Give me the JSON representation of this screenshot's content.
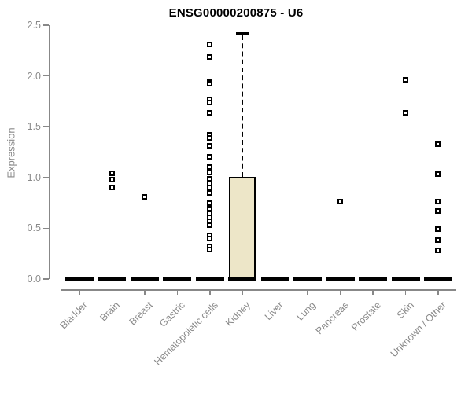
{
  "chart_data": {
    "type": "box",
    "title": "ENSG00000200875 - U6",
    "xlabel": "",
    "ylabel": "Expression",
    "ylim": [
      0,
      2.5
    ],
    "yticks": [
      0,
      0.5,
      1,
      1.5,
      2,
      2.5
    ],
    "grid": false,
    "legend": "none",
    "marker": "open-square",
    "categories": [
      "Bladder",
      "Brain",
      "Breast",
      "Gastric",
      "Hematopoietic cells",
      "Kidney",
      "Liver",
      "Lung",
      "Pancreas",
      "Prostate",
      "Skin",
      "Unknown / Other"
    ],
    "boxes": [
      {
        "category": "Bladder",
        "median": 0,
        "q1": 0,
        "q3": 0,
        "whisker_low": 0,
        "whisker_high": 0,
        "outliers": []
      },
      {
        "category": "Brain",
        "median": 0,
        "q1": 0,
        "q3": 0,
        "whisker_low": 0,
        "whisker_high": 0,
        "outliers": [
          1.04,
          0.98,
          0.9
        ]
      },
      {
        "category": "Breast",
        "median": 0,
        "q1": 0,
        "q3": 0,
        "whisker_low": 0,
        "whisker_high": 0,
        "outliers": [
          0.81
        ]
      },
      {
        "category": "Gastric",
        "median": 0,
        "q1": 0,
        "q3": 0,
        "whisker_low": 0,
        "whisker_high": 0,
        "outliers": []
      },
      {
        "category": "Hematopoietic cells",
        "median": 0,
        "q1": 0,
        "q3": 0,
        "whisker_low": 0,
        "whisker_high": 0,
        "outliers": [
          2.31,
          2.19,
          1.94,
          1.92,
          1.77,
          1.74,
          1.64,
          1.42,
          1.39,
          1.31,
          1.2,
          1.1,
          1.05,
          0.99,
          0.94,
          0.9,
          0.85,
          0.75,
          0.69,
          0.65,
          0.61,
          0.57,
          0.53,
          0.43,
          0.4,
          0.32,
          0.29
        ]
      },
      {
        "category": "Kidney",
        "median": 0,
        "q1": 0,
        "q3": 1.01,
        "whisker_low": 0,
        "whisker_high": 2.42,
        "outliers": []
      },
      {
        "category": "Liver",
        "median": 0,
        "q1": 0,
        "q3": 0,
        "whisker_low": 0,
        "whisker_high": 0,
        "outliers": []
      },
      {
        "category": "Lung",
        "median": 0,
        "q1": 0,
        "q3": 0,
        "whisker_low": 0,
        "whisker_high": 0,
        "outliers": []
      },
      {
        "category": "Pancreas",
        "median": 0,
        "q1": 0,
        "q3": 0,
        "whisker_low": 0,
        "whisker_high": 0,
        "outliers": [
          0.76
        ]
      },
      {
        "category": "Prostate",
        "median": 0,
        "q1": 0,
        "q3": 0,
        "whisker_low": 0,
        "whisker_high": 0,
        "outliers": []
      },
      {
        "category": "Skin",
        "median": 0,
        "q1": 0,
        "q3": 0,
        "whisker_low": 0,
        "whisker_high": 0,
        "outliers": [
          1.96,
          1.64
        ]
      },
      {
        "category": "Unknown / Other",
        "median": 0,
        "q1": 0,
        "q3": 0,
        "whisker_low": 0,
        "whisker_high": 0,
        "outliers": [
          1.33,
          1.03,
          0.76,
          0.67,
          0.49,
          0.38,
          0.28
        ]
      }
    ],
    "colors": {
      "box_fill": "#ede6c8",
      "box_border": "#000000",
      "outlier": "#000000",
      "zero_bar": "#000000",
      "axis": "#888888",
      "tick_label": "#8a8a8a",
      "title": "#000000",
      "background": "#ffffff"
    }
  }
}
